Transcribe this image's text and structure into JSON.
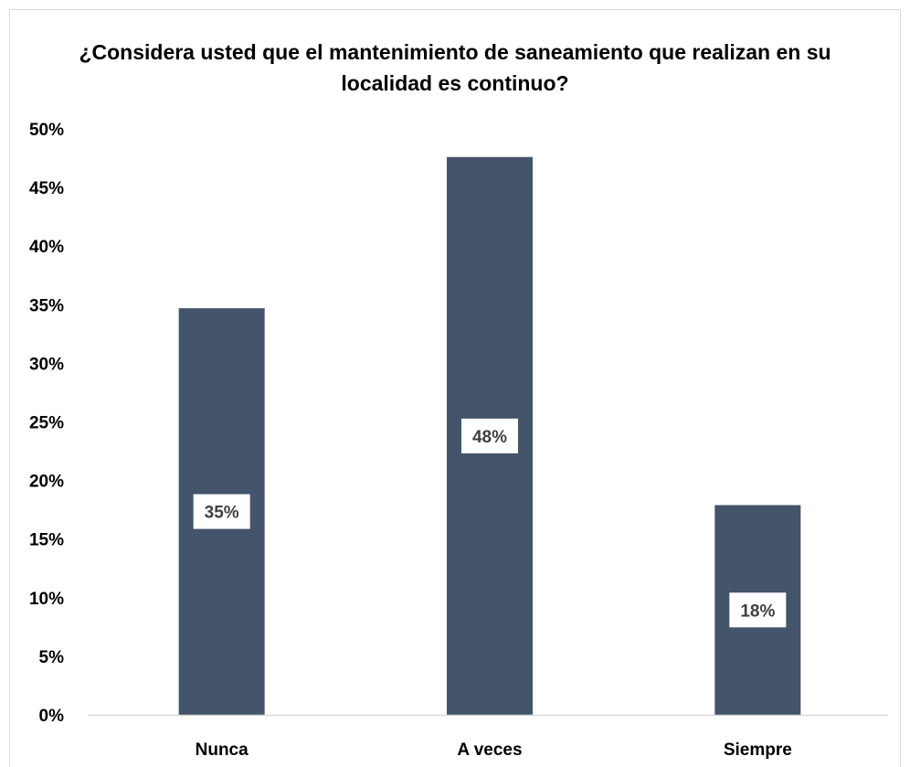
{
  "chart_data": {
    "type": "bar",
    "title": "¿Considera usted que el mantenimiento de saneamiento que realizan en su localidad es continuo?",
    "xlabel": "",
    "ylabel": "",
    "categories": [
      "Nunca",
      "A veces",
      "Siempre"
    ],
    "values": [
      34.7,
      47.6,
      17.9
    ],
    "value_labels": [
      "35%",
      "48%",
      "18%"
    ],
    "ylim": [
      0,
      50
    ],
    "yticks": [
      0,
      5,
      10,
      15,
      20,
      25,
      30,
      35,
      40,
      45,
      50
    ],
    "ytick_labels": [
      "0%",
      "5%",
      "10%",
      "15%",
      "20%",
      "25%",
      "30%",
      "35%",
      "40%",
      "45%",
      "50%"
    ],
    "grid": false,
    "legend": "none",
    "colors": {
      "bar": "#44546a",
      "label_bg": "#ffffff",
      "label_text": "#404040",
      "axis_line": "#d9d9d9"
    }
  }
}
